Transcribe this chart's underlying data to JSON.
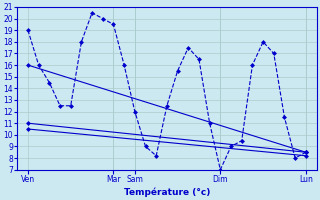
{
  "xlabel": "Température (°c)",
  "background_color": "#cce8f0",
  "grid_color": "#aacccc",
  "line_color": "#0000cc",
  "ylim": [
    7,
    21
  ],
  "yticks": [
    7,
    8,
    9,
    10,
    11,
    12,
    13,
    14,
    15,
    16,
    17,
    18,
    19,
    20,
    21
  ],
  "xlim": [
    0,
    28
  ],
  "xtick_positions": [
    1,
    9,
    11,
    19,
    27
  ],
  "xtick_labels": [
    "Ven",
    "Mar",
    "Sam",
    "Dim",
    "Lun"
  ],
  "vline_positions": [
    9,
    11,
    19,
    27
  ],
  "series1_x": [
    1,
    2,
    3,
    4,
    5,
    6,
    7,
    8,
    9,
    10,
    11,
    12,
    13,
    14,
    15,
    16,
    17,
    18,
    19,
    20,
    21,
    22,
    23,
    24,
    25,
    26,
    27
  ],
  "series1_y": [
    19.0,
    16.0,
    14.5,
    12.5,
    12.5,
    18.0,
    20.5,
    20.0,
    19.5,
    16.0,
    12.0,
    9.0,
    8.2,
    12.5,
    15.5,
    17.5,
    16.5,
    11.0,
    7.0,
    9.0,
    9.5,
    16.0,
    18.0,
    17.0,
    11.5,
    8.0,
    8.5
  ],
  "series2_x": [
    1,
    27
  ],
  "series2_y": [
    11.0,
    8.5
  ],
  "series3_x": [
    1,
    27
  ],
  "series3_y": [
    16.0,
    8.5
  ],
  "series4_x": [
    1,
    27
  ],
  "series4_y": [
    10.5,
    8.2
  ],
  "figsize": [
    3.2,
    2.0
  ],
  "dpi": 100
}
